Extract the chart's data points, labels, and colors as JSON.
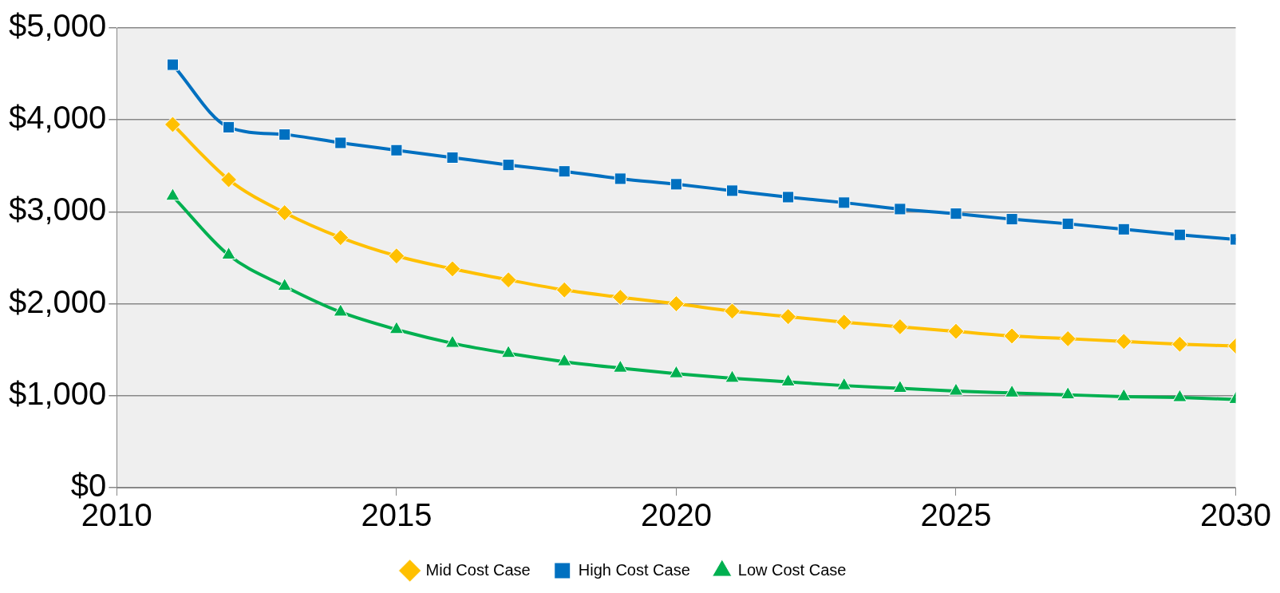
{
  "chart_data": {
    "type": "line",
    "x": [
      2011,
      2012,
      2013,
      2014,
      2015,
      2016,
      2017,
      2018,
      2019,
      2020,
      2021,
      2022,
      2023,
      2024,
      2025,
      2026,
      2027,
      2028,
      2029,
      2030
    ],
    "series": [
      {
        "name": "Mid Cost Case",
        "color": "#ffc000",
        "marker": "diamond",
        "values": [
          3950,
          3350,
          2990,
          2720,
          2520,
          2380,
          2260,
          2150,
          2070,
          2000,
          1920,
          1860,
          1800,
          1750,
          1700,
          1650,
          1620,
          1590,
          1560,
          1540
        ]
      },
      {
        "name": "High Cost Case",
        "color": "#0070c0",
        "marker": "square",
        "values": [
          4600,
          3920,
          3840,
          3750,
          3670,
          3590,
          3510,
          3440,
          3360,
          3300,
          3230,
          3160,
          3100,
          3030,
          2980,
          2920,
          2870,
          2810,
          2750,
          2700
        ]
      },
      {
        "name": "Low Cost Case",
        "color": "#00b050",
        "marker": "triangle",
        "values": [
          3170,
          2530,
          2190,
          1910,
          1720,
          1570,
          1460,
          1370,
          1300,
          1240,
          1190,
          1150,
          1110,
          1080,
          1050,
          1030,
          1010,
          990,
          980,
          960
        ]
      }
    ],
    "xlim": [
      2010,
      2030
    ],
    "xticks": [
      2010,
      2015,
      2020,
      2025,
      2030
    ],
    "ylim": [
      0,
      5000
    ],
    "yticks": [
      {
        "value": 0,
        "label": "$0"
      },
      {
        "value": 1000,
        "label": "$1,000"
      },
      {
        "value": 2000,
        "label": "$2,000"
      },
      {
        "value": 3000,
        "label": "$3,000"
      },
      {
        "value": 4000,
        "label": "$4,000"
      },
      {
        "value": 5000,
        "label": "$5,000"
      }
    ],
    "grid": "y",
    "legend": "bottom"
  }
}
